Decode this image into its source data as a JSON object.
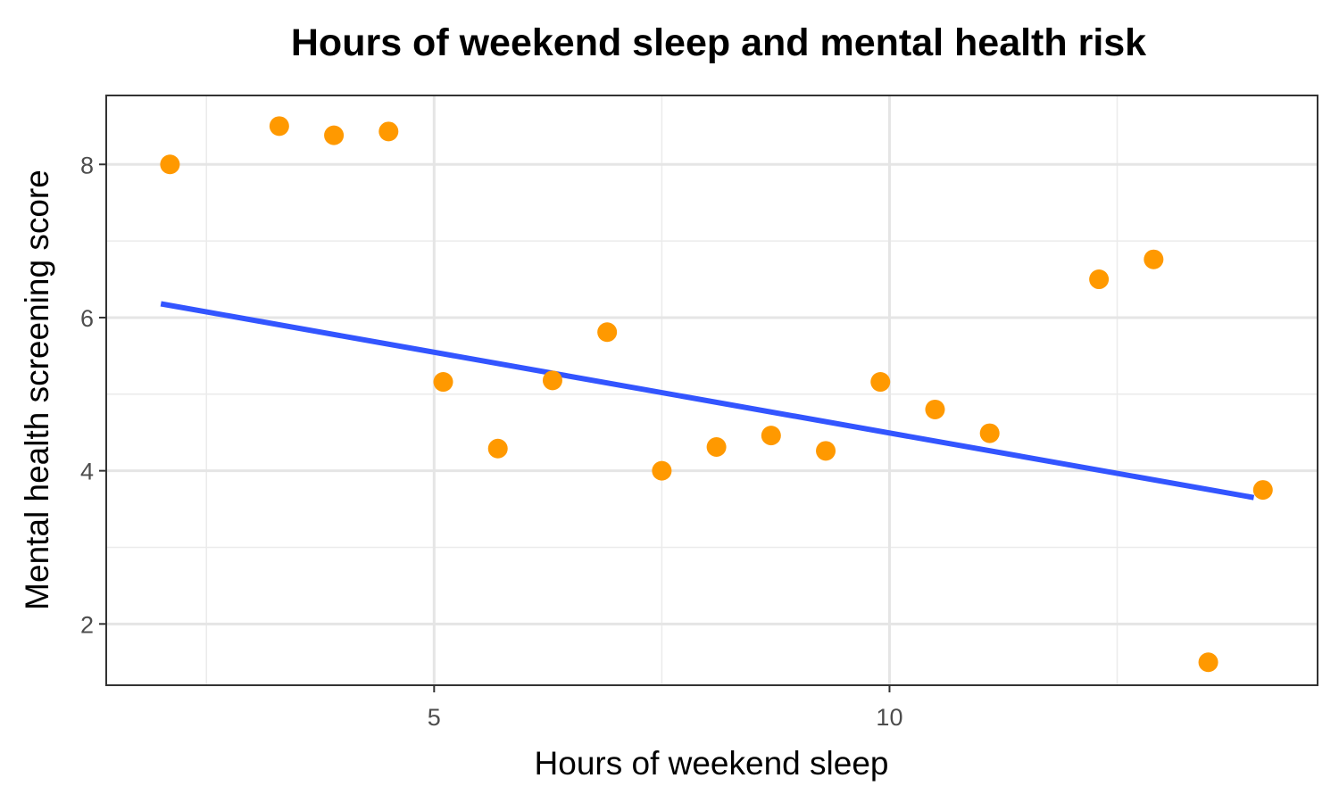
{
  "chart_data": {
    "type": "scatter",
    "title": "Hours of weekend sleep and mental health risk",
    "xlabel": "Hours of weekend sleep",
    "ylabel": "Mental health screening score",
    "xlim": [
      1.4,
      14.7
    ],
    "ylim": [
      1.2,
      8.9
    ],
    "x_ticks": [
      5,
      10
    ],
    "x_tick_labels": [
      "5",
      "10"
    ],
    "y_ticks": [
      2,
      4,
      6,
      8
    ],
    "y_tick_labels": [
      "2",
      "4",
      "6",
      "8"
    ],
    "x_minor_gridlines": [
      2.5,
      7.5,
      12.5
    ],
    "y_minor_gridlines": [
      3,
      5,
      7
    ],
    "grid": true,
    "legend": "none",
    "point_color": "#ff9900",
    "line_color": "#3355ff",
    "series": [
      {
        "x": [
          2.1,
          3.3,
          3.9,
          4.5,
          5.1,
          5.7,
          6.3,
          6.9,
          7.5,
          8.1,
          8.7,
          9.3,
          9.9,
          10.5,
          11.1,
          12.3,
          12.9,
          13.5,
          14.1
        ],
        "y": [
          8.0,
          8.5,
          8.38,
          8.43,
          5.16,
          4.29,
          5.18,
          5.81,
          4.0,
          4.31,
          4.46,
          4.26,
          5.16,
          4.8,
          4.49,
          6.5,
          6.76,
          1.5,
          3.75
        ]
      }
    ],
    "trend_line": {
      "type": "linear",
      "x": [
        2.0,
        14.0
      ],
      "y": [
        6.18,
        3.65
      ]
    }
  }
}
